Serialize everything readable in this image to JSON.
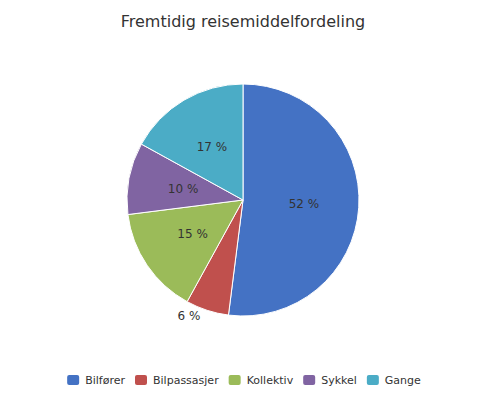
{
  "chart_data": {
    "type": "pie",
    "title": "Fremtidig reisemiddelfordeling",
    "categories": [
      "Bilfører",
      "Bilpassasjer",
      "Kollektiv",
      "Sykkel",
      "Gange"
    ],
    "values": [
      52,
      6,
      15,
      10,
      17
    ],
    "value_labels": [
      "52 %",
      "6 %",
      "15 %",
      "10 %",
      "17 %"
    ],
    "colors": [
      "#4472C4",
      "#C0504D",
      "#9BBB59",
      "#8064A2",
      "#4BACC6"
    ],
    "data_labels": true,
    "legend": "bottom"
  }
}
